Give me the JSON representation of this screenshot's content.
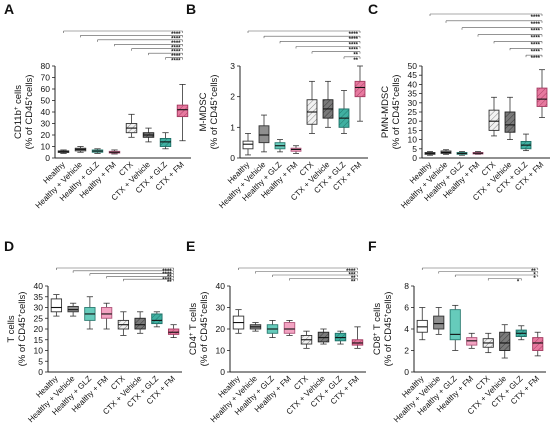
{
  "chart_data": [
    {
      "panel": "A",
      "type": "box",
      "ylabel_main": "CD11b",
      "ylabel_sup": "+",
      "ylabel_rest": " cells",
      "ylabel_unit": "(% of CD45",
      "ylabel_unit_sup": "+",
      "ylabel_unit_end": "cells)",
      "ylim": [
        0,
        80
      ],
      "yticks": [
        0,
        10,
        20,
        30,
        40,
        50,
        60,
        70,
        80
      ],
      "categories": [
        "Healthy",
        "Healthy + Vehicle",
        "Healthy + GLZ",
        "Healthy + FM",
        "CTX",
        "CTX + Vehicle",
        "CTX + GLZ",
        "CTX + FM"
      ],
      "boxes": [
        {
          "min": 4,
          "q1": 4.8,
          "median": 5.5,
          "q3": 6.2,
          "max": 7
        },
        {
          "min": 5,
          "q1": 6.2,
          "median": 7.5,
          "q3": 8.5,
          "max": 10
        },
        {
          "min": 4,
          "q1": 5,
          "median": 6,
          "q3": 7,
          "max": 8
        },
        {
          "min": 3.5,
          "q1": 4.3,
          "median": 5,
          "q3": 5.8,
          "max": 7
        },
        {
          "min": 18,
          "q1": 22,
          "median": 26,
          "q3": 30,
          "max": 38
        },
        {
          "min": 14,
          "q1": 18,
          "median": 20,
          "q3": 22,
          "max": 26
        },
        {
          "min": 8,
          "q1": 10,
          "median": 14,
          "q3": 17,
          "max": 22
        },
        {
          "min": 15,
          "q1": 36,
          "median": 42,
          "q3": 46,
          "max": 64
        }
      ],
      "significance": [
        {
          "from": 0,
          "to": 7,
          "label": "****"
        },
        {
          "from": 1,
          "to": 7,
          "label": "****"
        },
        {
          "from": 2,
          "to": 7,
          "label": "****"
        },
        {
          "from": 3,
          "to": 7,
          "label": "****"
        },
        {
          "from": 4,
          "to": 7,
          "label": "****"
        },
        {
          "from": 5,
          "to": 7,
          "label": "****"
        },
        {
          "from": 6,
          "to": 7,
          "label": "****"
        }
      ]
    },
    {
      "panel": "B",
      "type": "box",
      "ylabel_main": "M-MDSC",
      "ylabel_sup": "",
      "ylabel_rest": "",
      "ylabel_unit": "(% of CD45",
      "ylabel_unit_sup": "+",
      "ylabel_unit_end": "cells)",
      "ylim": [
        0,
        3
      ],
      "yticks": [
        0,
        1,
        2,
        3
      ],
      "categories": [
        "Healthy",
        "Healthy + Vehicle",
        "Healthy + GLZ",
        "Healthy + FM",
        "CTX",
        "CTX + Vehicle",
        "CTX + GLZ",
        "CTX + FM"
      ],
      "boxes": [
        {
          "min": 0.1,
          "q1": 0.3,
          "median": 0.45,
          "q3": 0.55,
          "max": 0.8
        },
        {
          "min": 0.2,
          "q1": 0.5,
          "median": 0.75,
          "q3": 1.05,
          "max": 1.4
        },
        {
          "min": 0.2,
          "q1": 0.3,
          "median": 0.4,
          "q3": 0.5,
          "max": 0.6
        },
        {
          "min": 0.15,
          "q1": 0.22,
          "median": 0.28,
          "q3": 0.32,
          "max": 0.4
        },
        {
          "min": 0.8,
          "q1": 1.1,
          "median": 1.5,
          "q3": 1.9,
          "max": 2.5
        },
        {
          "min": 1.0,
          "q1": 1.3,
          "median": 1.6,
          "q3": 1.9,
          "max": 2.5
        },
        {
          "min": 0.8,
          "q1": 1.0,
          "median": 1.3,
          "q3": 1.6,
          "max": 2.2
        },
        {
          "min": 1.2,
          "q1": 2.0,
          "median": 2.3,
          "q3": 2.5,
          "max": 3.0
        }
      ],
      "significance": [
        {
          "from": 0,
          "to": 7,
          "label": "****"
        },
        {
          "from": 1,
          "to": 7,
          "label": "****"
        },
        {
          "from": 2,
          "to": 7,
          "label": "****"
        },
        {
          "from": 3,
          "to": 7,
          "label": "****"
        },
        {
          "from": 4,
          "to": 7,
          "label": "**"
        },
        {
          "from": 6,
          "to": 7,
          "label": "**"
        }
      ]
    },
    {
      "panel": "C",
      "type": "box",
      "ylabel_main": "PMN-MDSC",
      "ylabel_sup": "",
      "ylabel_rest": "",
      "ylabel_unit": "(% of CD45",
      "ylabel_unit_sup": "+",
      "ylabel_unit_end": "cells)",
      "ylim": [
        0,
        50
      ],
      "yticks": [
        0,
        5,
        10,
        15,
        20,
        25,
        30,
        35,
        40,
        45,
        50
      ],
      "categories": [
        "Healthy",
        "Healthy + Vehicle",
        "Healthy + GLZ",
        "Healthy + FM",
        "CTX",
        "CTX + Vehicle",
        "CTX + GLZ",
        "CTX + FM"
      ],
      "boxes": [
        {
          "min": 1.5,
          "q1": 2,
          "median": 2.5,
          "q3": 3,
          "max": 3.5
        },
        {
          "min": 2,
          "q1": 2.5,
          "median": 3,
          "q3": 3.8,
          "max": 4.5
        },
        {
          "min": 1.5,
          "q1": 2,
          "median": 2.5,
          "q3": 3,
          "max": 3.5
        },
        {
          "min": 2,
          "q1": 2.2,
          "median": 2.6,
          "q3": 3,
          "max": 3.5
        },
        {
          "min": 12,
          "q1": 15,
          "median": 20,
          "q3": 26,
          "max": 33
        },
        {
          "min": 10,
          "q1": 14,
          "median": 18,
          "q3": 25,
          "max": 33
        },
        {
          "min": 4,
          "q1": 5,
          "median": 7,
          "q3": 9,
          "max": 13
        },
        {
          "min": 22,
          "q1": 28,
          "median": 32,
          "q3": 38,
          "max": 48
        }
      ],
      "significance": [
        {
          "from": 0,
          "to": 7,
          "label": "****"
        },
        {
          "from": 1,
          "to": 7,
          "label": "****"
        },
        {
          "from": 2,
          "to": 7,
          "label": "****"
        },
        {
          "from": 3,
          "to": 7,
          "label": "****"
        },
        {
          "from": 4,
          "to": 7,
          "label": "****"
        },
        {
          "from": 5,
          "to": 7,
          "label": "****"
        },
        {
          "from": 6,
          "to": 7,
          "label": "****"
        }
      ]
    },
    {
      "panel": "D",
      "type": "box",
      "ylabel_main": "T cells",
      "ylabel_sup": "",
      "ylabel_rest": "",
      "ylabel_unit": "(% of CD45",
      "ylabel_unit_sup": "+",
      "ylabel_unit_end": "cells)",
      "ylim": [
        0,
        40
      ],
      "yticks": [
        0,
        5,
        10,
        15,
        20,
        25,
        30,
        35,
        40
      ],
      "categories": [
        "Healthy",
        "Healthy + Vehicle",
        "Healthy + GLZ",
        "Healthy + FM",
        "CTX",
        "CTX + Vehicle",
        "CTX + GLZ",
        "CTX + FM"
      ],
      "boxes": [
        {
          "min": 26,
          "q1": 28,
          "median": 30,
          "q3": 34,
          "max": 36
        },
        {
          "min": 26,
          "q1": 28,
          "median": 29,
          "q3": 30.5,
          "max": 32
        },
        {
          "min": 20,
          "q1": 24,
          "median": 27,
          "q3": 30,
          "max": 35
        },
        {
          "min": 20,
          "q1": 25,
          "median": 27,
          "q3": 30,
          "max": 32
        },
        {
          "min": 17,
          "q1": 20,
          "median": 22,
          "q3": 24,
          "max": 28
        },
        {
          "min": 18,
          "q1": 20,
          "median": 22,
          "q3": 25,
          "max": 28
        },
        {
          "min": 21,
          "q1": 22.5,
          "median": 24,
          "q3": 27,
          "max": 28
        },
        {
          "min": 16,
          "q1": 17.5,
          "median": 18.5,
          "q3": 20,
          "max": 22
        }
      ],
      "significance": [
        {
          "from": 0,
          "to": 7,
          "label": "****"
        },
        {
          "from": 1,
          "to": 7,
          "label": "****"
        },
        {
          "from": 2,
          "to": 7,
          "label": "**"
        },
        {
          "from": 3,
          "to": 7,
          "label": "****"
        },
        {
          "from": 4,
          "to": 7,
          "label": "**"
        }
      ]
    },
    {
      "panel": "E",
      "type": "box",
      "ylabel_main": "CD4",
      "ylabel_sup": "+",
      "ylabel_rest": " T cells",
      "ylabel_unit": "(% of CD45",
      "ylabel_unit_sup": "+",
      "ylabel_unit_end": "cells)",
      "ylim": [
        0,
        40
      ],
      "yticks": [
        0,
        10,
        20,
        30,
        40
      ],
      "categories": [
        "Healthy",
        "Healthy + Vehicle",
        "Healthy + GLZ",
        "Healthy + FM",
        "CTX",
        "CTX + Vehicle",
        "CTX + GLZ",
        "CTX + FM"
      ],
      "boxes": [
        {
          "min": 18,
          "q1": 20,
          "median": 23,
          "q3": 26,
          "max": 29
        },
        {
          "min": 19,
          "q1": 20,
          "median": 21,
          "q3": 22,
          "max": 23
        },
        {
          "min": 16,
          "q1": 18,
          "median": 20,
          "q3": 22,
          "max": 24
        },
        {
          "min": 17,
          "q1": 18,
          "median": 20,
          "q3": 23,
          "max": 24
        },
        {
          "min": 11,
          "q1": 13,
          "median": 15,
          "q3": 17,
          "max": 19
        },
        {
          "min": 13,
          "q1": 14,
          "median": 16,
          "q3": 18.5,
          "max": 20
        },
        {
          "min": 13,
          "q1": 14.5,
          "median": 16,
          "q3": 18,
          "max": 19
        },
        {
          "min": 11,
          "q1": 12.5,
          "median": 13.5,
          "q3": 15,
          "max": 21
        }
      ],
      "significance": [
        {
          "from": 0,
          "to": 7,
          "label": "****"
        },
        {
          "from": 1,
          "to": 7,
          "label": "***"
        },
        {
          "from": 2,
          "to": 7,
          "label": "**"
        },
        {
          "from": 3,
          "to": 7,
          "label": "**"
        }
      ]
    },
    {
      "panel": "F",
      "type": "box",
      "ylabel_main": "CD8",
      "ylabel_sup": "+",
      "ylabel_rest": " T cells",
      "ylabel_unit": "(% of CD45",
      "ylabel_unit_sup": "+",
      "ylabel_unit_end": "cells)",
      "ylim": [
        0,
        8
      ],
      "yticks": [
        0,
        2,
        4,
        6,
        8
      ],
      "categories": [
        "Healthy",
        "Healthy + Vehicle",
        "Healthy + GLZ",
        "Healthy + FM",
        "CTX",
        "CTX + Vehicle",
        "CTX + GLZ",
        "CTX + FM"
      ],
      "boxes": [
        {
          "min": 3,
          "q1": 3.7,
          "median": 4.2,
          "q3": 4.8,
          "max": 6
        },
        {
          "min": 3.5,
          "q1": 4,
          "median": 4.5,
          "q3": 5.2,
          "max": 6
        },
        {
          "min": 2,
          "q1": 3,
          "median": 3.5,
          "q3": 5.8,
          "max": 6.2
        },
        {
          "min": 2.2,
          "q1": 2.5,
          "median": 2.9,
          "q3": 3.2,
          "max": 3.6
        },
        {
          "min": 1.8,
          "q1": 2.3,
          "median": 2.7,
          "q3": 3.1,
          "max": 3.6
        },
        {
          "min": 1.3,
          "q1": 2,
          "median": 2.7,
          "q3": 3.7,
          "max": 4.4
        },
        {
          "min": 3.0,
          "q1": 3.3,
          "median": 3.6,
          "q3": 3.9,
          "max": 4.3
        },
        {
          "min": 1.5,
          "q1": 2,
          "median": 2.7,
          "q3": 3.2,
          "max": 3.7
        }
      ],
      "significance": [
        {
          "from": 0,
          "to": 7,
          "label": "**"
        },
        {
          "from": 1,
          "to": 7,
          "label": "*"
        },
        {
          "from": 2,
          "to": 7,
          "label": "*"
        },
        {
          "from": 4,
          "to": 6,
          "label": "*"
        }
      ]
    }
  ],
  "colors": {
    "Healthy": "#ffffff",
    "Healthy + Vehicle": "#8c8c8c",
    "Healthy + GLZ": "#5ec8b8",
    "Healthy + FM": "#f2a0c0",
    "CTX": "#e8e8e8",
    "CTX + Vehicle": "#707070",
    "CTX + GLZ": "#3aa89a",
    "CTX + FM": "#e06a95"
  }
}
